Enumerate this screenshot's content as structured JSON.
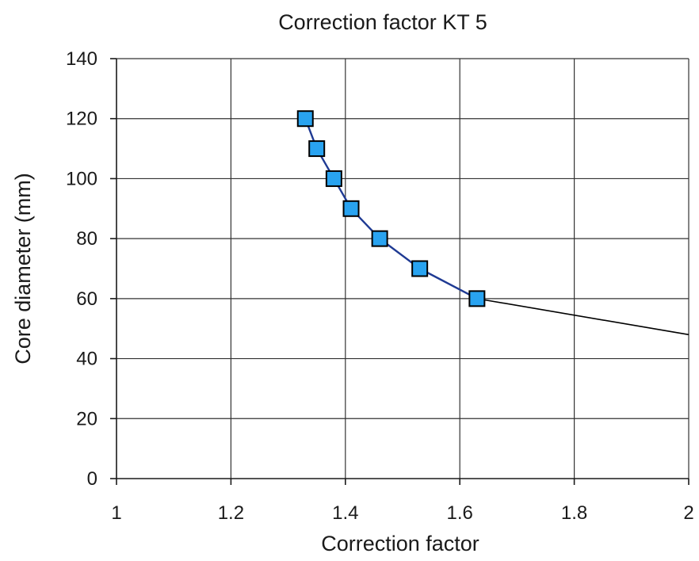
{
  "chart_data": {
    "type": "line",
    "title": "Correction factor KT 5",
    "xlabel": "Correction factor",
    "ylabel": "Core diameter (mm)",
    "xlim": [
      1,
      2
    ],
    "ylim": [
      0,
      140
    ],
    "x_ticks": [
      "1",
      "1.2",
      "1.4",
      "1.6",
      "1.8",
      "2"
    ],
    "y_ticks": [
      "0",
      "20",
      "40",
      "60",
      "80",
      "100",
      "120",
      "140"
    ],
    "grid": true,
    "series": [
      {
        "points": [
          {
            "x": 1.33,
            "y": 120
          },
          {
            "x": 1.35,
            "y": 110
          },
          {
            "x": 1.38,
            "y": 100
          },
          {
            "x": 1.41,
            "y": 90
          },
          {
            "x": 1.46,
            "y": 80
          },
          {
            "x": 1.53,
            "y": 70
          },
          {
            "x": 1.63,
            "y": 60
          }
        ],
        "line_color": "#1f3a93",
        "marker": "square",
        "marker_fill": "#29a3f0",
        "marker_stroke": "#000000"
      }
    ],
    "trend_line": {
      "points": [
        {
          "x": 1.63,
          "y": 60
        },
        {
          "x": 2.0,
          "y": 48
        }
      ],
      "color": "#000000"
    }
  }
}
